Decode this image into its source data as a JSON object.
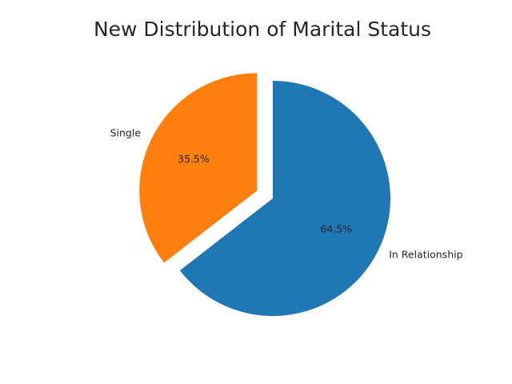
{
  "chart_data": {
    "type": "pie",
    "title": "New Distribution of Marital Status",
    "slices": [
      {
        "label": "In Relationship",
        "value": 64.5,
        "pct_label": "64.5%",
        "color": "#1f77b4",
        "exploded": false
      },
      {
        "label": "Single",
        "value": 35.5,
        "pct_label": "35.5%",
        "color": "#ff7f0e",
        "exploded": true
      }
    ],
    "start_angle_deg": 90,
    "direction": "clockwise",
    "legend": "none"
  }
}
